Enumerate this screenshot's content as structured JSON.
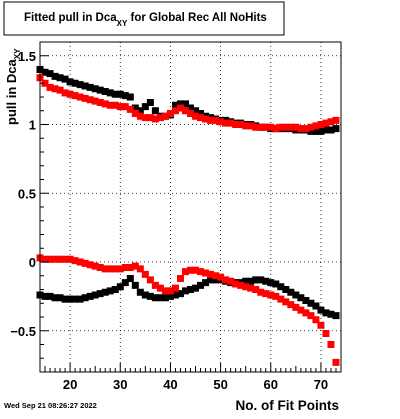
{
  "chart_data": {
    "type": "scatter",
    "title_main": "Fitted pull in Dca",
    "title_sub": "XY",
    "title_rest": " for Global Rec All NoHits",
    "xlabel": "No. of Fit Points",
    "ylabel_main": "pull in Dca",
    "ylabel_sub": "XY",
    "timestamp": "Wed Sep 21 08:26:27 2022",
    "xlim": [
      14,
      74
    ],
    "ylim": [
      -0.8,
      1.6
    ],
    "x_ticks": [
      20,
      30,
      40,
      50,
      60,
      70
    ],
    "x_tick_labels": [
      "20",
      "30",
      "40",
      "50",
      "60",
      "70"
    ],
    "y_ticks": [
      -0.5,
      0,
      0.5,
      1,
      1.5
    ],
    "y_tick_labels": [
      "−0.5",
      "0",
      "0.5",
      "1",
      "1.5"
    ],
    "grid": true,
    "colors": {
      "black_series": "#000000",
      "red_series": "#ff0000",
      "frame": "#000000",
      "grid": "#000000"
    },
    "x": [
      14,
      15,
      16,
      17,
      18,
      19,
      20,
      21,
      22,
      23,
      24,
      25,
      26,
      27,
      28,
      29,
      30,
      31,
      32,
      33,
      34,
      35,
      36,
      37,
      38,
      39,
      40,
      41,
      42,
      43,
      44,
      45,
      46,
      47,
      48,
      49,
      50,
      51,
      52,
      53,
      54,
      55,
      56,
      57,
      58,
      59,
      60,
      61,
      62,
      63,
      64,
      65,
      66,
      67,
      68,
      69,
      70,
      71,
      72,
      73
    ],
    "series": [
      {
        "values_mean_black": [
          1.4,
          1.38,
          1.37,
          1.35,
          1.34,
          1.33,
          1.31,
          1.3,
          1.29,
          1.28,
          1.27,
          1.26,
          1.25,
          1.24,
          1.23,
          1.22,
          1.22,
          1.21,
          1.2,
          1.12,
          1.1,
          1.13,
          1.16,
          1.1,
          1.06,
          1.06,
          1.07,
          1.14,
          1.15,
          1.15,
          1.12,
          1.1,
          1.08,
          1.06,
          1.05,
          1.04,
          1.03,
          1.03,
          1.02,
          1.01,
          1.01,
          1.0,
          1.0,
          0.99,
          0.98,
          0.98,
          0.97,
          0.97,
          0.97,
          0.97,
          0.97,
          0.96,
          0.96,
          0.96,
          0.95,
          0.95,
          0.95,
          0.96,
          0.96,
          0.97
        ],
        "values_mean_red": [
          1.34,
          1.3,
          1.27,
          1.26,
          1.25,
          1.23,
          1.22,
          1.21,
          1.2,
          1.19,
          1.18,
          1.17,
          1.16,
          1.15,
          1.14,
          1.14,
          1.13,
          1.13,
          1.11,
          1.08,
          1.06,
          1.05,
          1.05,
          1.04,
          1.05,
          1.06,
          1.08,
          1.1,
          1.12,
          1.1,
          1.08,
          1.06,
          1.05,
          1.04,
          1.03,
          1.03,
          1.02,
          1.01,
          1.01,
          1.0,
          1.0,
          0.99,
          0.99,
          0.98,
          0.98,
          0.98,
          0.98,
          0.97,
          0.98,
          0.98,
          0.98,
          0.98,
          0.97,
          0.97,
          0.98,
          0.99,
          1.0,
          1.01,
          1.02,
          1.03
        ],
        "values_width_black": [
          -0.24,
          -0.25,
          -0.25,
          -0.26,
          -0.26,
          -0.27,
          -0.27,
          -0.27,
          -0.27,
          -0.26,
          -0.25,
          -0.24,
          -0.23,
          -0.22,
          -0.21,
          -0.2,
          -0.18,
          -0.15,
          -0.12,
          -0.17,
          -0.22,
          -0.24,
          -0.25,
          -0.26,
          -0.26,
          -0.26,
          -0.25,
          -0.24,
          -0.23,
          -0.21,
          -0.2,
          -0.19,
          -0.17,
          -0.15,
          -0.13,
          -0.13,
          -0.13,
          -0.14,
          -0.15,
          -0.15,
          -0.15,
          -0.14,
          -0.14,
          -0.13,
          -0.13,
          -0.14,
          -0.15,
          -0.16,
          -0.18,
          -0.2,
          -0.22,
          -0.24,
          -0.26,
          -0.28,
          -0.3,
          -0.32,
          -0.35,
          -0.37,
          -0.38,
          -0.39
        ],
        "values_width_red": [
          0.03,
          0.02,
          0.02,
          0.02,
          0.02,
          0.02,
          0.02,
          0.01,
          0.0,
          -0.01,
          -0.02,
          -0.03,
          -0.04,
          -0.05,
          -0.05,
          -0.05,
          -0.05,
          -0.04,
          -0.04,
          -0.03,
          -0.05,
          -0.09,
          -0.13,
          -0.17,
          -0.19,
          -0.21,
          -0.21,
          -0.19,
          -0.12,
          -0.07,
          -0.06,
          -0.06,
          -0.07,
          -0.08,
          -0.09,
          -0.1,
          -0.11,
          -0.13,
          -0.14,
          -0.16,
          -0.17,
          -0.18,
          -0.19,
          -0.2,
          -0.22,
          -0.23,
          -0.24,
          -0.25,
          -0.27,
          -0.29,
          -0.31,
          -0.33,
          -0.35,
          -0.37,
          -0.39,
          -0.42,
          -0.46,
          -0.52,
          -0.6,
          -0.73
        ]
      }
    ]
  }
}
